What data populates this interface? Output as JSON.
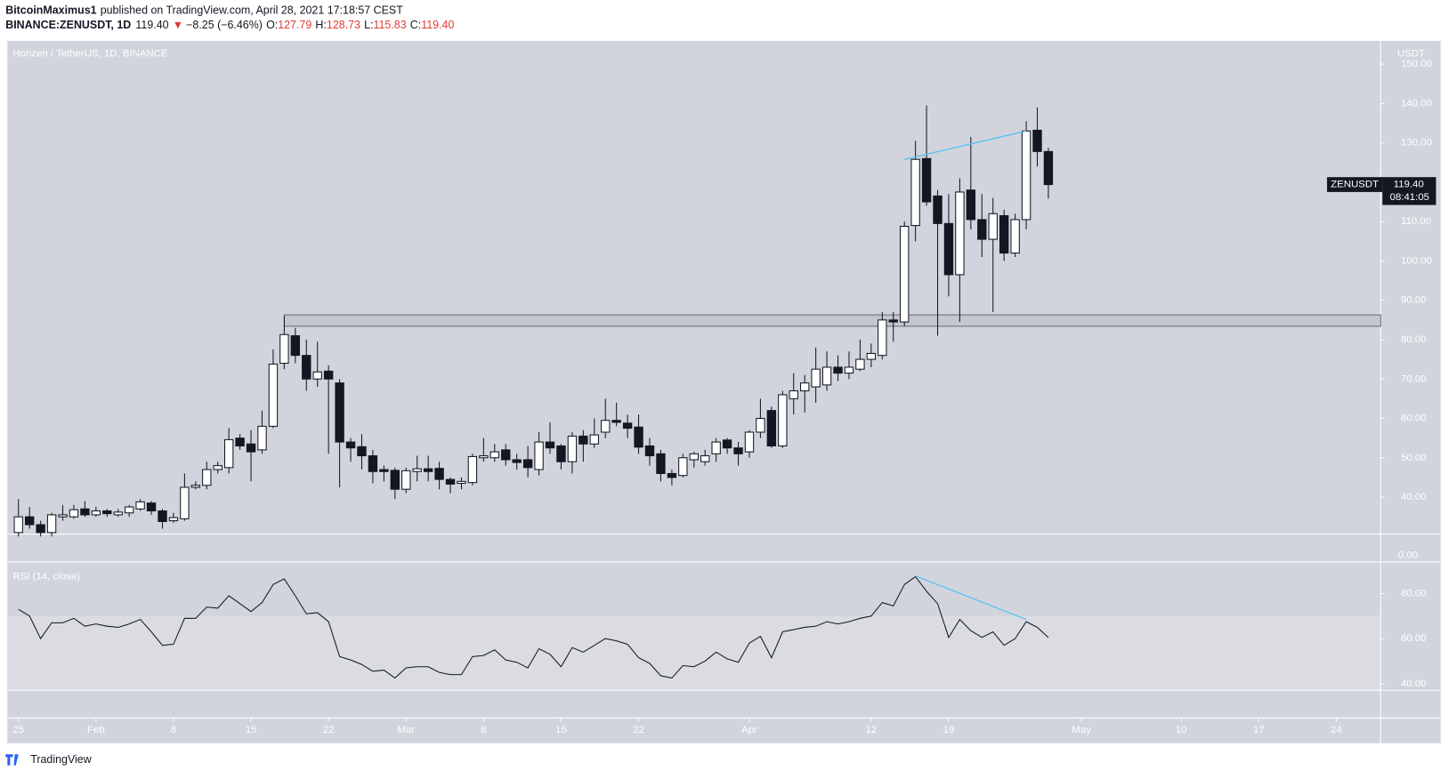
{
  "header": {
    "author": "BitcoinMaximus1",
    "published": "published on TradingView.com, April 28, 2021 17:18:57 CEST",
    "symbol": "BINANCE:ZENUSDT, 1D",
    "last": "119.40",
    "arrow": "▼",
    "change": "−8.25 (−6.46%)",
    "ohlc": [
      {
        "label": "O:",
        "value": "127.79"
      },
      {
        "label": "H:",
        "value": "128.73"
      },
      {
        "label": "L:",
        "value": "115.83"
      },
      {
        "label": "C:",
        "value": "119.40"
      }
    ]
  },
  "chart_data": {
    "type": "candlestick",
    "title": "Horizen / TetherUS, 1D, BINANCE",
    "y_unit": "USDT",
    "pane_gap_label": "0.00",
    "up_color": "#ffffff",
    "down_color": "#131722",
    "grid": false,
    "x": [
      "2021-01-25",
      "2021-01-26",
      "2021-01-27",
      "2021-01-28",
      "2021-01-29",
      "2021-01-30",
      "2021-01-31",
      "2021-02-01",
      "2021-02-02",
      "2021-02-03",
      "2021-02-04",
      "2021-02-05",
      "2021-02-06",
      "2021-02-07",
      "2021-02-08",
      "2021-02-09",
      "2021-02-10",
      "2021-02-11",
      "2021-02-12",
      "2021-02-13",
      "2021-02-14",
      "2021-02-15",
      "2021-02-16",
      "2021-02-17",
      "2021-02-18",
      "2021-02-19",
      "2021-02-20",
      "2021-02-21",
      "2021-02-22",
      "2021-02-23",
      "2021-02-24",
      "2021-02-25",
      "2021-02-26",
      "2021-02-27",
      "2021-02-28",
      "2021-03-01",
      "2021-03-02",
      "2021-03-03",
      "2021-03-04",
      "2021-03-05",
      "2021-03-06",
      "2021-03-07",
      "2021-03-08",
      "2021-03-09",
      "2021-03-10",
      "2021-03-11",
      "2021-03-12",
      "2021-03-13",
      "2021-03-14",
      "2021-03-15",
      "2021-03-16",
      "2021-03-17",
      "2021-03-18",
      "2021-03-19",
      "2021-03-20",
      "2021-03-21",
      "2021-03-22",
      "2021-03-23",
      "2021-03-24",
      "2021-03-25",
      "2021-03-26",
      "2021-03-27",
      "2021-03-28",
      "2021-03-29",
      "2021-03-30",
      "2021-03-31",
      "2021-04-01",
      "2021-04-02",
      "2021-04-03",
      "2021-04-04",
      "2021-04-05",
      "2021-04-06",
      "2021-04-07",
      "2021-04-08",
      "2021-04-09",
      "2021-04-10",
      "2021-04-11",
      "2021-04-12",
      "2021-04-13",
      "2021-04-14",
      "2021-04-15",
      "2021-04-16",
      "2021-04-17",
      "2021-04-18",
      "2021-04-19",
      "2021-04-20",
      "2021-04-21",
      "2021-04-22",
      "2021-04-23",
      "2021-04-24",
      "2021-04-25",
      "2021-04-26",
      "2021-04-27",
      "2021-04-28"
    ],
    "open": [
      31,
      35,
      33,
      31,
      35,
      35,
      37,
      35.5,
      36.5,
      35.5,
      36,
      37,
      38.5,
      36.5,
      34,
      34.5,
      42.5,
      43,
      47,
      47.5,
      55,
      53.5,
      52,
      58,
      74,
      81,
      76,
      70,
      72,
      69,
      54,
      52.8,
      50.5,
      47,
      46.8,
      42,
      46.5,
      47.2,
      47.3,
      44.5,
      43.5,
      43.7,
      50,
      50,
      52,
      49.5,
      49.5,
      47,
      54,
      53,
      49,
      55.5,
      53.5,
      56.5,
      59.5,
      58.8,
      57.8,
      53,
      51,
      46,
      45.5,
      49.5,
      49,
      51,
      54.5,
      52.5,
      51.5,
      56.5,
      62,
      53,
      65,
      67,
      68,
      68.5,
      73,
      71.5,
      72.5,
      75,
      76,
      85,
      84.5,
      109,
      126,
      116.5,
      109.5,
      96.5,
      118,
      110.5,
      105.5,
      111.5,
      102,
      110.5,
      133.2,
      127.79
    ],
    "high": [
      39.5,
      37.5,
      34,
      36,
      38,
      38,
      39,
      37.5,
      37,
      37,
      38,
      39.5,
      39,
      37,
      36,
      46,
      44,
      49,
      49,
      57.5,
      56,
      57,
      62,
      77.5,
      86,
      83,
      80,
      79.5,
      73.5,
      70,
      55,
      56,
      52,
      48,
      47.5,
      47.5,
      50.5,
      50.5,
      49,
      45,
      45,
      51,
      55,
      53.5,
      53.5,
      51,
      53,
      56.5,
      59,
      53.5,
      56.5,
      57,
      60,
      65,
      64,
      61,
      61,
      55,
      52,
      47,
      51,
      51.5,
      52,
      55,
      55,
      54,
      57,
      65,
      63,
      67,
      71.5,
      71,
      78,
      77,
      76,
      77,
      80,
      79,
      87,
      87,
      110,
      130.5,
      139.5,
      118,
      117,
      121,
      131.5,
      117,
      116,
      113,
      112,
      135.5,
      139,
      128.73
    ],
    "low": [
      30,
      32,
      30,
      30,
      34,
      34.5,
      35,
      35,
      35,
      35,
      35,
      36.5,
      35.5,
      32,
      33.5,
      34,
      42,
      42,
      46,
      46,
      52,
      44,
      51,
      57.5,
      72.5,
      74,
      67,
      68,
      51,
      42.5,
      49,
      47,
      43.5,
      44,
      39.5,
      41,
      44,
      44,
      42,
      41,
      42,
      43,
      49,
      49,
      48,
      47,
      45,
      45.5,
      51,
      47,
      46,
      49,
      52.5,
      55,
      58,
      55,
      51,
      48,
      44,
      43,
      45,
      47.5,
      48,
      49,
      51,
      48,
      50,
      55,
      52.5,
      52.5,
      61,
      61.5,
      64,
      67,
      69.5,
      70,
      72,
      73,
      75,
      79.5,
      83.5,
      105,
      114,
      81,
      91,
      84.5,
      108,
      101,
      87,
      100,
      101,
      108,
      124,
      115.83
    ],
    "close": [
      35,
      33,
      31,
      35.5,
      35.5,
      36.8,
      35.5,
      36.5,
      35.8,
      36.2,
      37.5,
      38.8,
      36.5,
      33.8,
      34.8,
      42.5,
      43,
      47,
      48,
      54.6,
      53,
      51.5,
      58,
      73.8,
      81.3,
      76,
      70,
      71.8,
      70,
      54,
      52.5,
      50.5,
      46.5,
      46.5,
      42,
      46.7,
      47.2,
      46.5,
      44.5,
      43.3,
      44,
      50.3,
      50.5,
      51.5,
      49.5,
      48.8,
      47.5,
      54,
      52.5,
      49,
      55.5,
      53.5,
      55.8,
      59.5,
      59,
      57.5,
      52.7,
      50.5,
      46,
      45,
      50,
      51,
      50.5,
      54,
      52.5,
      51,
      56.5,
      60,
      53,
      66,
      67,
      69,
      72.5,
      73,
      71.5,
      73,
      75,
      76.5,
      85,
      84.5,
      108.8,
      125.8,
      115,
      109.5,
      96.5,
      117.5,
      110.5,
      105.5,
      112,
      102,
      110.5,
      133,
      127.8,
      119.4
    ],
    "xlim": [
      "2021-01-24",
      "2021-05-28"
    ],
    "xticks": [
      {
        "value": "2021-01-25",
        "label": "25"
      },
      {
        "value": "2021-02-01",
        "label": "Feb"
      },
      {
        "value": "2021-02-08",
        "label": "8"
      },
      {
        "value": "2021-02-15",
        "label": "15"
      },
      {
        "value": "2021-02-22",
        "label": "22"
      },
      {
        "value": "2021-03-01",
        "label": "Mar"
      },
      {
        "value": "2021-03-08",
        "label": "8"
      },
      {
        "value": "2021-03-15",
        "label": "15"
      },
      {
        "value": "2021-03-22",
        "label": "22"
      },
      {
        "value": "2021-04-01",
        "label": "Apr"
      },
      {
        "value": "2021-04-12",
        "label": "12"
      },
      {
        "value": "2021-04-19",
        "label": "19"
      },
      {
        "value": "2021-05-01",
        "label": "May"
      },
      {
        "value": "2021-05-10",
        "label": "10"
      },
      {
        "value": "2021-05-17",
        "label": "17"
      },
      {
        "value": "2021-05-24",
        "label": "24"
      }
    ],
    "ylim": [
      30.6,
      155.9
    ],
    "yticks": [
      {
        "value": 40,
        "label": "40.00"
      },
      {
        "value": 50,
        "label": "50.00"
      },
      {
        "value": 60,
        "label": "60.00"
      },
      {
        "value": 70,
        "label": "70.00"
      },
      {
        "value": 80,
        "label": "80.00"
      },
      {
        "value": 90,
        "label": "90.00"
      },
      {
        "value": 100,
        "label": "100.00"
      },
      {
        "value": 110,
        "label": "110.00"
      },
      {
        "value": 120,
        "label": "120.00"
      },
      {
        "value": 130,
        "label": "130.00"
      },
      {
        "value": 140,
        "label": "140.00"
      },
      {
        "value": 150,
        "label": "150.00"
      }
    ],
    "last_price": {
      "symbol": "ZENUSDT",
      "value": 119.4,
      "label": "119.40",
      "countdown": "08:41:05"
    },
    "zone": {
      "x0": "2021-02-18",
      "low": 83.4,
      "high": 86.3
    },
    "trendline": {
      "x": [
        "2021-04-15",
        "2021-04-26"
      ],
      "y": [
        125.8,
        133
      ],
      "color": "#4fc3f7"
    },
    "indicator": {
      "type": "line",
      "title": "RSI (14, close)",
      "color": "#131722",
      "values": [
        73,
        70,
        60,
        67,
        67,
        69,
        65.5,
        66.5,
        65.5,
        65,
        66.5,
        68.5,
        63,
        57,
        57.5,
        69,
        69,
        74,
        73.5,
        79,
        75.5,
        72,
        76,
        84,
        86.5,
        79,
        71,
        71.5,
        67.5,
        52,
        50.5,
        48.5,
        45.5,
        46,
        42.5,
        47,
        47.5,
        47.5,
        45,
        44,
        44,
        52,
        52.5,
        55,
        50.5,
        49.5,
        47,
        55.5,
        53,
        47.5,
        56,
        54,
        57,
        60,
        59,
        57.5,
        51.5,
        49,
        43.5,
        42.5,
        48,
        47.5,
        50,
        54,
        51,
        49.5,
        58,
        61,
        51.5,
        63,
        64,
        65,
        65.5,
        67.5,
        66.5,
        67.5,
        69,
        70,
        76,
        74.5,
        84,
        87.5,
        81,
        75.5,
        60.5,
        68.5,
        63.5,
        60.5,
        63,
        57,
        60,
        67.5,
        65,
        60.5
      ],
      "ylim": [
        37.1,
        94
      ],
      "yticks": [
        {
          "value": 40,
          "label": "40.00"
        },
        {
          "value": 60,
          "label": "60.00"
        },
        {
          "value": 80,
          "label": "80.00"
        }
      ],
      "band": [
        30,
        70
      ],
      "trendline": {
        "x": [
          "2021-04-16",
          "2021-04-26"
        ],
        "y": [
          87.8,
          68.5
        ],
        "color": "#4fc3f7"
      }
    }
  },
  "footer": "TradingView"
}
